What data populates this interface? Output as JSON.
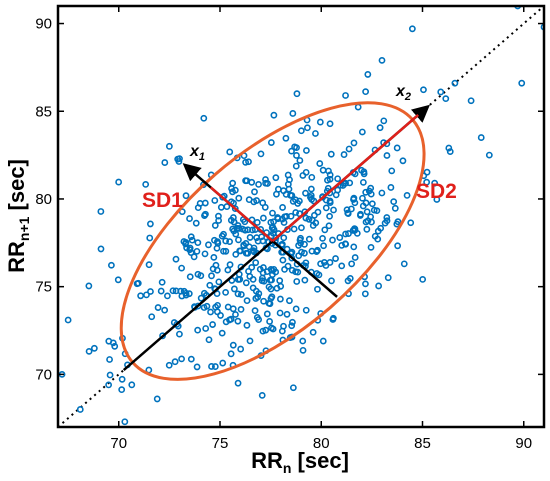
{
  "chart_data": {
    "type": "scatter",
    "xlabel": {
      "main": "RR",
      "sub": "n",
      "unit": " [sec]"
    },
    "ylabel": {
      "main": "RR",
      "sub": "n+1",
      "unit": " [sec]"
    },
    "xlim": [
      67,
      91
    ],
    "ylim": [
      67,
      91
    ],
    "xticks": [
      70,
      75,
      80,
      85,
      90
    ],
    "yticks": [
      70,
      75,
      80,
      85,
      90
    ],
    "grid": false,
    "marker_color": "#0072BD",
    "ellipse_color": "#E8612C",
    "sd_color": "#E0201B",
    "center": [
      77.6,
      77.6
    ],
    "sd1": 2.7,
    "sd2": 7.7,
    "identity_line": true,
    "annotations": {
      "sd1": "SD1",
      "sd2": "SD2",
      "x1": {
        "main": "x",
        "sub": "1"
      },
      "x2": {
        "main": "x",
        "sub": "2"
      }
    },
    "outlier_points": [
      [
        67.2,
        70.0
      ],
      [
        67.5,
        73.1
      ],
      [
        68.1,
        68.0
      ],
      [
        69.8,
        71.6
      ],
      [
        70.3,
        67.3
      ],
      [
        69.5,
        69.4
      ],
      [
        71.9,
        68.6
      ],
      [
        73.0,
        82.3
      ],
      [
        79.3,
        84.5
      ],
      [
        80.6,
        73.2
      ],
      [
        81.2,
        85.9
      ],
      [
        82.3,
        87.1
      ],
      [
        83.0,
        87.9
      ],
      [
        84.5,
        89.7
      ],
      [
        85.9,
        86.1
      ],
      [
        86.6,
        86.6
      ],
      [
        87.4,
        85.6
      ],
      [
        88.3,
        82.5
      ],
      [
        89.7,
        91.0
      ],
      [
        89.9,
        86.6
      ],
      [
        91.0,
        89.8
      ],
      [
        86.3,
        82.9
      ],
      [
        85.6,
        80.9
      ],
      [
        87.9,
        83.5
      ],
      [
        84.1,
        76.3
      ],
      [
        72.5,
        83.0
      ],
      [
        74.2,
        84.6
      ],
      [
        78.8,
        86.0
      ],
      [
        80.1,
        71.9
      ],
      [
        79.6,
        72.4
      ]
    ],
    "cloud": {
      "count": 560,
      "seed": 20240611
    }
  }
}
